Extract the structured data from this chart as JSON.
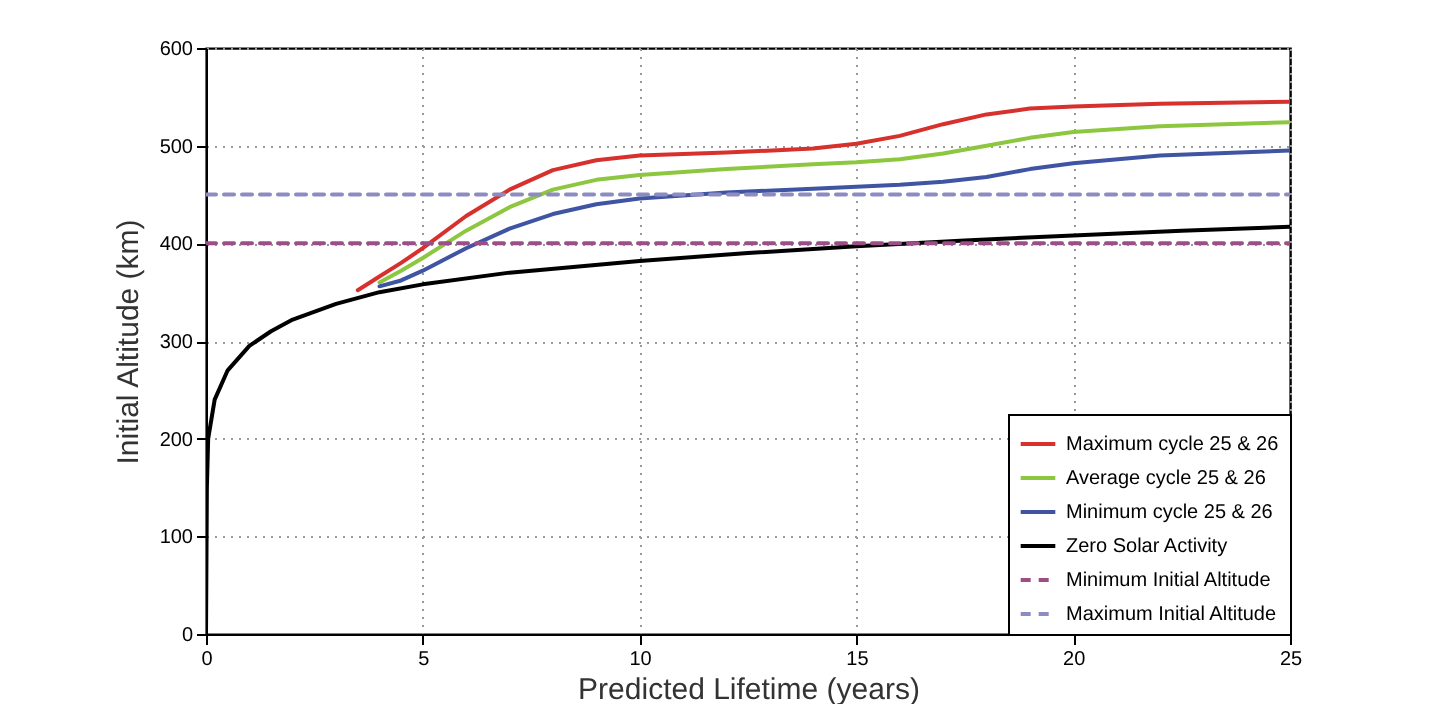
{
  "chart_data": {
    "type": "line",
    "xlabel": "Predicted Lifetime (years)",
    "ylabel": "Initial Altitude (km)",
    "xlim": [
      0,
      25
    ],
    "xticks": [
      0,
      5,
      10,
      15,
      20,
      25
    ],
    "ylim": [
      0,
      600
    ],
    "yticks": [
      0,
      100,
      200,
      300,
      400,
      500,
      600
    ],
    "grid": true,
    "legend": "bottom right",
    "line_style": "solid",
    "series": [
      {
        "name": "Maximum cycle 25 & 26",
        "color": "#d7312e",
        "x": [
          3.5,
          4,
          4.5,
          5,
          6,
          7,
          8,
          9,
          10,
          12,
          14,
          15,
          16,
          17,
          18,
          19,
          20,
          22,
          25
        ],
        "values": [
          352,
          366,
          380,
          395,
          428,
          455,
          475,
          485,
          490,
          493,
          497,
          502,
          510,
          522,
          532,
          538,
          540,
          543,
          545
        ]
      },
      {
        "name": "Average cycle 25 & 26",
        "color": "#8dc63f",
        "x": [
          4,
          4.5,
          5,
          6,
          7,
          8,
          9,
          10,
          12,
          14,
          15,
          16,
          17,
          18,
          19,
          20,
          22,
          25
        ],
        "values": [
          360,
          372,
          385,
          413,
          437,
          455,
          465,
          470,
          476,
          481,
          483,
          486,
          492,
          500,
          508,
          514,
          520,
          524
        ]
      },
      {
        "name": "Minimum cycle 25 & 26",
        "color": "#3f54a3",
        "x": [
          4,
          4.5,
          5,
          6,
          7,
          8,
          9,
          10,
          12,
          14,
          16,
          17,
          18,
          19,
          20,
          22,
          25
        ],
        "values": [
          356,
          362,
          372,
          395,
          415,
          430,
          440,
          446,
          452,
          456,
          460,
          463,
          468,
          476,
          482,
          490,
          495
        ]
      },
      {
        "name": "Zero Solar Activity",
        "color": "#000000",
        "x": [
          0,
          0.02,
          0.05,
          0.2,
          0.5,
          1,
          1.5,
          2,
          3,
          4,
          5,
          7,
          10,
          12.5,
          15,
          17.5,
          20,
          22.5,
          25
        ],
        "values": [
          0,
          150,
          200,
          240,
          270,
          295,
          310,
          322,
          338,
          350,
          358,
          370,
          382,
          390,
          397,
          403,
          408,
          413,
          417
        ]
      },
      {
        "name": "Minimum Initial Altitude",
        "color": "#9b4f86",
        "line_style": "dashed",
        "x": [
          0,
          25
        ],
        "values": [
          400,
          400
        ]
      },
      {
        "name": "Maximum Initial Altitude",
        "color": "#8c8cc0",
        "line_style": "dashed",
        "x": [
          0,
          25
        ],
        "values": [
          450,
          450
        ]
      }
    ]
  }
}
